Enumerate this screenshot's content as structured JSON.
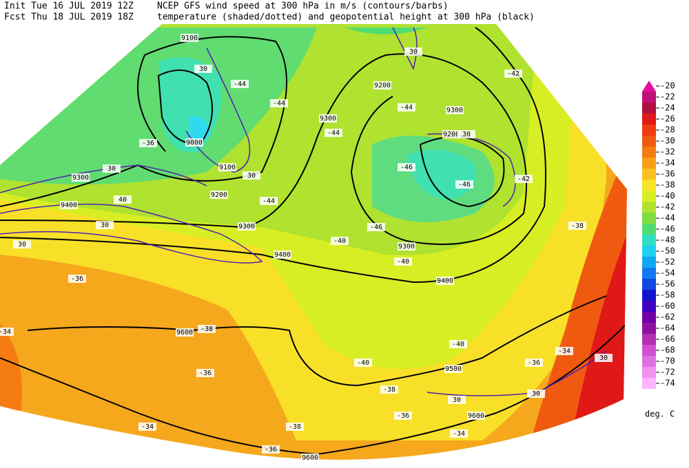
{
  "header": {
    "init": "Init  Tue 16 JUL 2019 12Z",
    "fcst": "Fcst Thu 18 JUL 2019 18Z",
    "title_line1": "NCEP GFS wind speed at 300 hPa in m/s (contours/barbs)",
    "title_line2": "temperature (shaded/dotted) and geopotential height at 300 hPa (black)"
  },
  "map_labels": [
    "9100",
    "30",
    "-44",
    "9000",
    "9100",
    "9200",
    "30",
    "30",
    "9300",
    "9400",
    "40",
    "30",
    "30",
    "9300",
    "9400",
    "-36",
    "9600",
    "-38",
    "-36",
    "-44",
    "-44",
    "9300",
    "-44",
    "9200",
    "-44",
    "9300",
    "9200",
    "30",
    "-46",
    "-46",
    "-42",
    "-42",
    "-46",
    "9300",
    "-40",
    "9400",
    "-38",
    "-40",
    "9500",
    "30",
    "-36",
    "30",
    "9600",
    "-34",
    "30",
    "-38",
    "-36",
    "-38",
    "-36",
    "9600",
    "-34",
    "-34",
    "-34",
    "30",
    "-40",
    "-40",
    "-36"
  ],
  "colorbar": {
    "values": [
      -20,
      -22,
      -24,
      -26,
      -28,
      -30,
      -32,
      -34,
      -36,
      -38,
      -40,
      -42,
      -44,
      -46,
      -48,
      -50,
      -52,
      -54,
      -56,
      -58,
      -60,
      -62,
      -64,
      -66,
      -68,
      -70,
      -72,
      -74
    ],
    "colors": [
      "#e0109c",
      "#c0107a",
      "#b01040",
      "#e01818",
      "#f03a10",
      "#f05a10",
      "#f47c10",
      "#f8a018",
      "#f8c020",
      "#f8e428",
      "#d8ee24",
      "#b0e230",
      "#80dc40",
      "#50dc70",
      "#30e0c0",
      "#20d0f0",
      "#10a8f0",
      "#1078f0",
      "#1048e0",
      "#1414d0",
      "#4000c0",
      "#7000a8",
      "#9010a0",
      "#b030b0",
      "#d050d0",
      "#e070e0",
      "#f090f0",
      "#ffb4ff"
    ],
    "unit": "deg. C"
  }
}
